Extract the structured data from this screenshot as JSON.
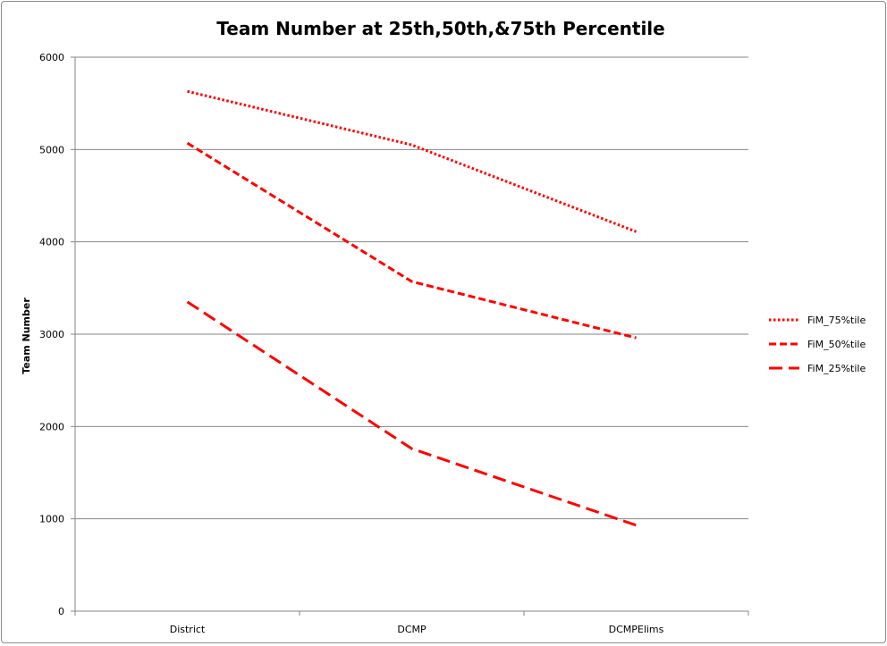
{
  "chart_data": {
    "type": "line",
    "title": "Team Number at 25th,50th,&75th Percentile",
    "xlabel": "",
    "ylabel": "Team Number",
    "categories": [
      "District",
      "DCMP",
      "DCMPElims"
    ],
    "ylim": [
      0,
      6000
    ],
    "yticks": [
      0,
      1000,
      2000,
      3000,
      4000,
      5000,
      6000
    ],
    "grid": true,
    "legend_position": "right",
    "series": [
      {
        "name": "FiM_75%tile",
        "values": [
          5630,
          5050,
          4110
        ],
        "color": "#ff0000",
        "dash": "dotted"
      },
      {
        "name": "FiM_50%tile",
        "values": [
          5070,
          3570,
          2960
        ],
        "color": "#ff0000",
        "dash": "dashed"
      },
      {
        "name": "FiM_25%tile",
        "values": [
          3350,
          1760,
          930
        ],
        "color": "#ff0000",
        "dash": "long-dashed"
      }
    ]
  }
}
